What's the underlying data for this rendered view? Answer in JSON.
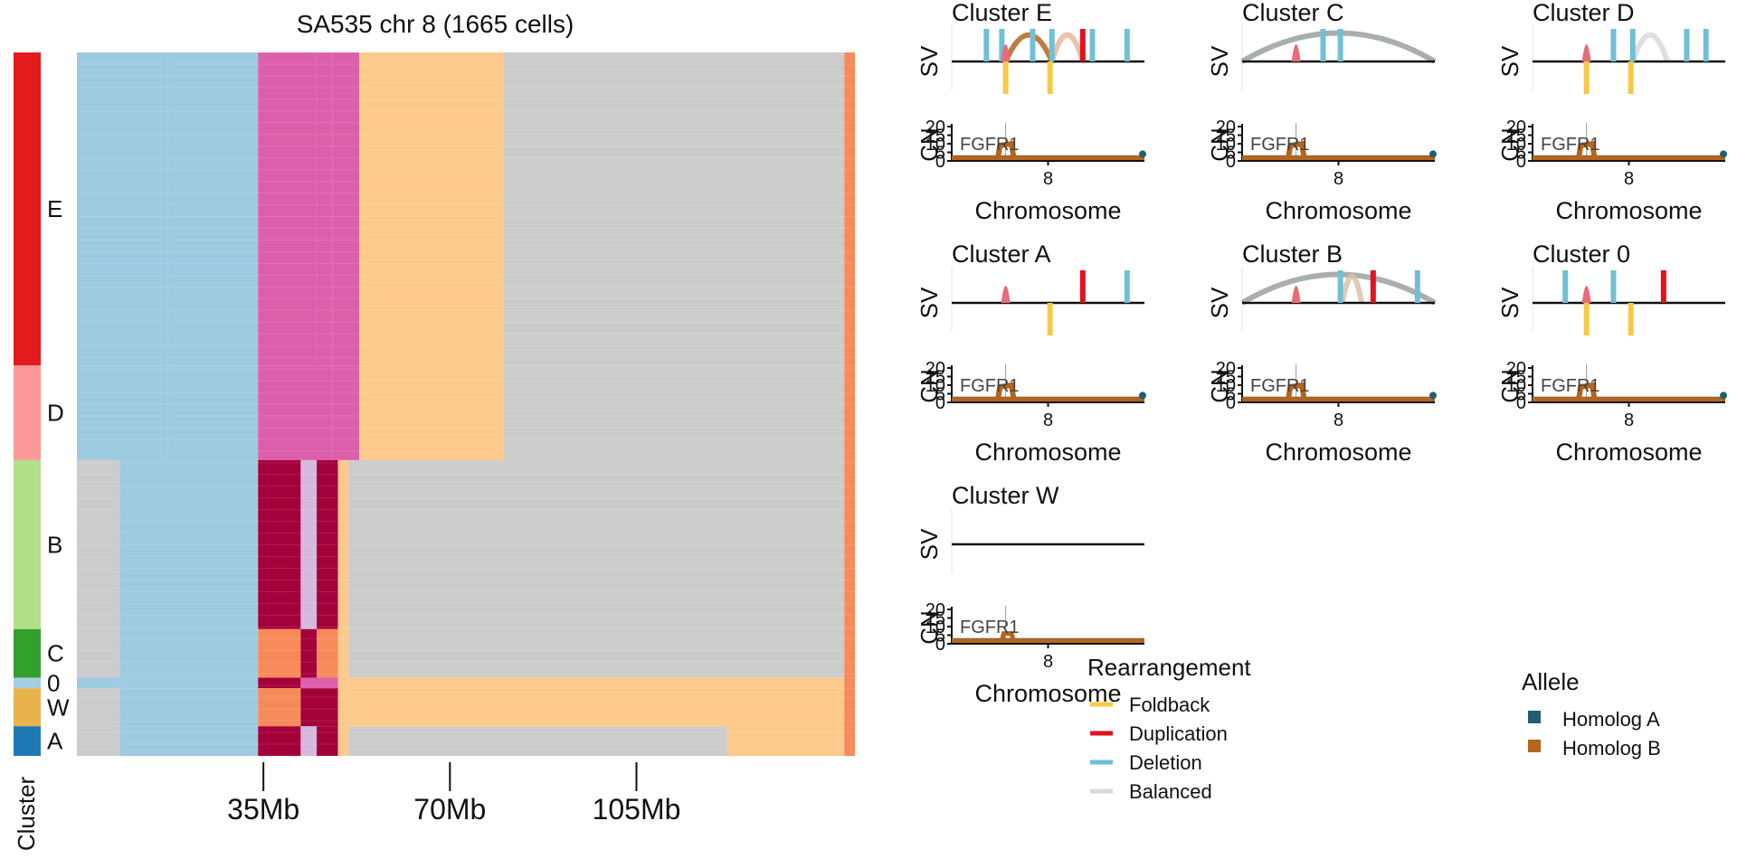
{
  "chart_data": [
    {
      "type": "heatmap",
      "title": "SA535 chr 8 (1665 cells)",
      "cluster_axis_label": "Cluster",
      "x_tick_labels": [
        "35Mb",
        "70Mb",
        "105Mb"
      ],
      "x_tick_positions_mb": [
        35,
        70,
        105
      ],
      "x_range_mb": [
        0,
        146
      ],
      "n_cells": 1665,
      "clusters": [
        {
          "label": "E",
          "cells": 741,
          "color": "#e31a1c"
        },
        {
          "label": "D",
          "cells": 224,
          "color": "#fb9a99"
        },
        {
          "label": "B",
          "cells": 400,
          "color": "#b2df8a"
        },
        {
          "label": "C",
          "cells": 115,
          "color": "#33a02c"
        },
        {
          "label": "0",
          "cells": 25,
          "color": "#a6cee3"
        },
        {
          "label": "W",
          "cells": 90,
          "color": "#e8b24d"
        },
        {
          "label": "A",
          "cells": 70,
          "color": "#1f78b4"
        }
      ]
    },
    {
      "type": "line",
      "panels": [
        {
          "title": "Cluster E"
        },
        {
          "title": "Cluster C"
        },
        {
          "title": "Cluster D"
        },
        {
          "title": "Cluster A"
        },
        {
          "title": "Cluster B"
        },
        {
          "title": "Cluster 0"
        },
        {
          "title": "Cluster W"
        }
      ],
      "sv_ylabel": "SV",
      "cn_ylabel": "CN",
      "cn_yticks": [
        "20",
        "15",
        "10",
        "5",
        "0"
      ],
      "x_tick": "8",
      "xlabel": "Chromosome",
      "gene_label": "FGFR1",
      "legends": {
        "rearrangement": {
          "title": "Rearrangement",
          "items": [
            {
              "label": "Foldback",
              "color": "#f7c945"
            },
            {
              "label": "Duplication",
              "color": "#e0121c"
            },
            {
              "label": "Deletion",
              "color": "#6fc0d4"
            },
            {
              "label": "Balanced",
              "color": "#d9d9d9"
            }
          ]
        },
        "allele": {
          "title": "Allele",
          "items": [
            {
              "label": "Homolog A",
              "color": "#1f5f70"
            },
            {
              "label": "Homolog B",
              "color": "#b5651d"
            }
          ]
        }
      }
    }
  ]
}
